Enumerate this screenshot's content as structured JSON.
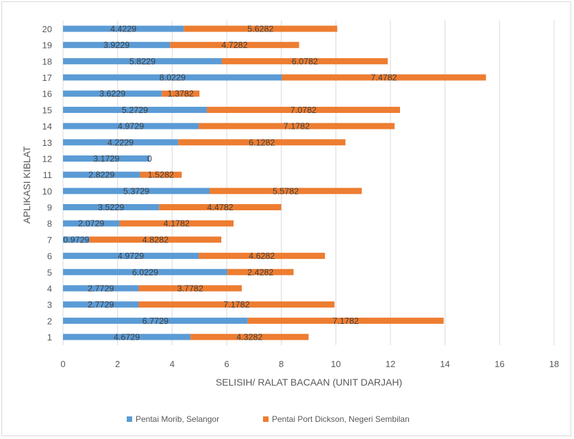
{
  "chart_data": {
    "type": "bar",
    "orientation": "horizontal",
    "stacked": true,
    "xlabel": "SELISIH/ RALAT BACAAN (UNIT DARJAH)",
    "ylabel": "APLIKASI KIBLAT",
    "xlim": [
      0,
      18
    ],
    "xticks": [
      "0",
      "2",
      "4",
      "6",
      "8",
      "10",
      "12",
      "14",
      "16",
      "18"
    ],
    "grid": true,
    "legend_position": "bottom",
    "categories": [
      "1",
      "2",
      "3",
      "4",
      "5",
      "6",
      "7",
      "8",
      "9",
      "10",
      "11",
      "12",
      "13",
      "14",
      "15",
      "16",
      "17",
      "18",
      "19",
      "20"
    ],
    "series": [
      {
        "name": "Pentai Morib, Selangor",
        "color": "#5B9BD5",
        "values": [
          4.6729,
          6.7729,
          2.7729,
          2.7729,
          6.0229,
          4.9729,
          0.9729,
          2.0729,
          3.5229,
          5.3729,
          2.8229,
          3.1729,
          4.2229,
          4.9729,
          5.2729,
          3.6229,
          8.0229,
          5.8229,
          3.9229,
          4.4229
        ],
        "labels": [
          "4.6729",
          "6.7729",
          "2.7729",
          "2.7729",
          "6.0229",
          "4.9729",
          "0.9729",
          "2.0729",
          "3.5229",
          "5.3729",
          "2.8229",
          "3.1729",
          "4.2229",
          "4.9729",
          "5.2729",
          "3.6229",
          "8.0229",
          "5.8229",
          "3.9229",
          "4.4229"
        ]
      },
      {
        "name": "Pentai Port Dickson, Negeri Sembilan",
        "color": "#ED7D31",
        "values": [
          4.3282,
          7.1782,
          7.1782,
          3.7782,
          2.4282,
          4.6282,
          4.8282,
          4.1782,
          4.4782,
          5.5782,
          1.5282,
          0,
          6.1282,
          7.1782,
          7.0782,
          1.3782,
          7.4782,
          6.0782,
          4.7282,
          5.6282
        ],
        "labels": [
          "4.3282",
          "7.1782",
          "7.1782",
          "3.7782",
          "2.4282",
          "4.6282",
          "4.8282",
          "4.1782",
          "4.4782",
          "5.5782",
          "1.5282",
          "0",
          "6.1282",
          "7.1782",
          "7.0782",
          "1.3782",
          "7.4782",
          "6.0782",
          "4.7282",
          "5.6282"
        ]
      }
    ]
  }
}
